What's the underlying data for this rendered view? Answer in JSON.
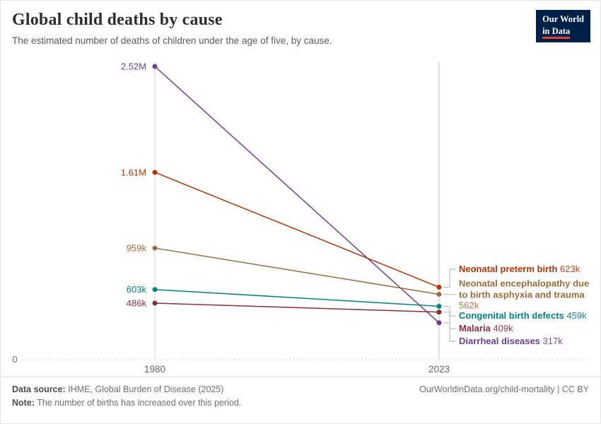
{
  "header": {
    "title": "Global child deaths by cause",
    "subtitle": "The estimated number of deaths of children under the age of five, by cause.",
    "logo": {
      "line1": "Our World",
      "line2": "in Data",
      "bg_color": "#002147",
      "accent_color": "#E63E36"
    }
  },
  "chart_data": {
    "type": "line",
    "x": [
      1980,
      2023
    ],
    "x_tick_labels": [
      "1980",
      "2023"
    ],
    "ylim": [
      0,
      2520000
    ],
    "y_zero_label": "0",
    "grid": "zero-line-dashed, vertical-year-lines",
    "legend_position": "right-inline-labels",
    "series": [
      {
        "name": "Diarrheal diseases",
        "color": "#6D3E91",
        "values": [
          2520000,
          317000
        ],
        "start_label": "2.52M",
        "end_label": "317k"
      },
      {
        "name": "Neonatal preterm birth",
        "color": "#B13507",
        "values": [
          1610000,
          623000
        ],
        "start_label": "1.61M",
        "end_label": "623k"
      },
      {
        "name": "Neonatal encephalopathy due to birth asphyxia and trauma",
        "color": "#996D39",
        "values": [
          959000,
          562000
        ],
        "start_label": "959k",
        "end_label": "562k"
      },
      {
        "name": "Congenital birth defects",
        "color": "#00847E",
        "values": [
          603000,
          459000
        ],
        "start_label": "603k",
        "end_label": "459k"
      },
      {
        "name": "Malaria",
        "color": "#883039",
        "values": [
          486000,
          409000
        ],
        "start_label": "486k",
        "end_label": "409k"
      }
    ]
  },
  "footer": {
    "datasource_label": "Data source:",
    "datasource_text": "IHME, Global Burden of Disease (2025)",
    "note_label": "Note:",
    "note_text": "The number of births has increased over this period.",
    "attribution": "OurWorldinData.org/child-mortality | CC BY"
  }
}
